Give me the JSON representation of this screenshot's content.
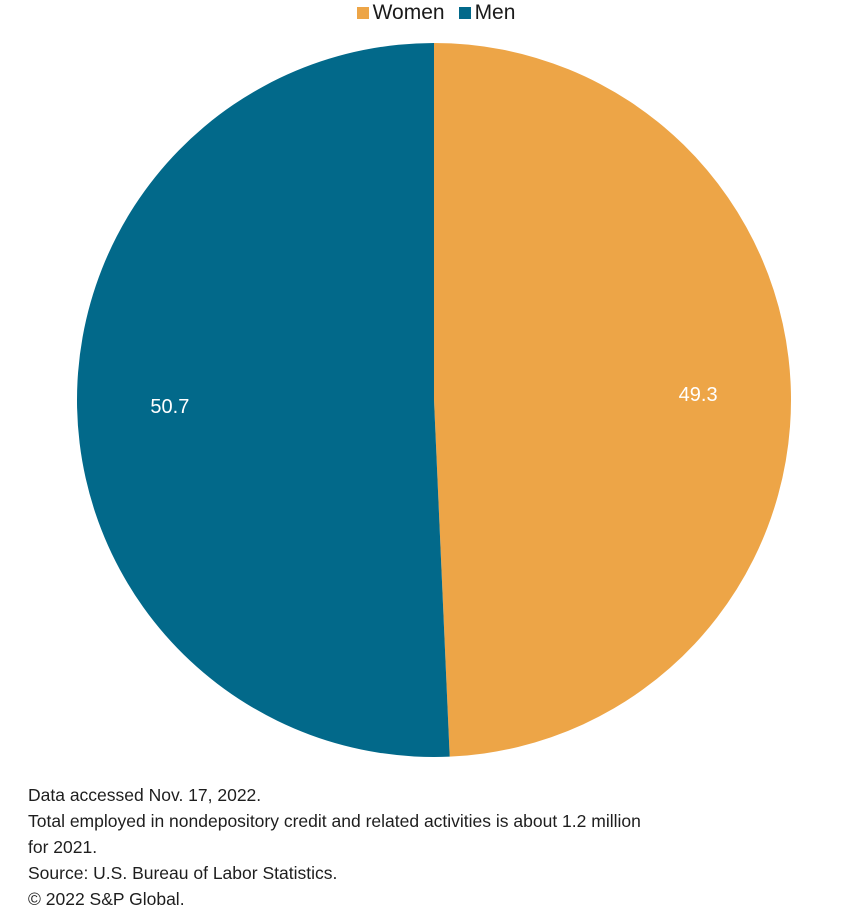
{
  "chart_data": {
    "type": "pie",
    "title": "",
    "legend": {
      "position": "top",
      "entries": [
        "Women",
        "Men"
      ]
    },
    "slices": [
      {
        "label": "Women",
        "value": 49.3,
        "color": "#EDA547"
      },
      {
        "label": "Men",
        "value": 50.7,
        "color": "#02698A"
      }
    ],
    "start_angle_deg": 0,
    "direction": "clockwise",
    "data_labels": [
      "49.3",
      "50.7"
    ]
  },
  "legend": {
    "items": [
      {
        "label": "Women",
        "color": "#EDA547"
      },
      {
        "label": "Men",
        "color": "#02698A"
      }
    ]
  },
  "notes": {
    "line1": "Data accessed Nov. 17, 2022.",
    "line2": "Total employed in nondepository credit and related activities is about 1.2 million",
    "line3": "for 2021.",
    "line4": "Source: U.S. Bureau of Labor Statistics.",
    "line5": "© 2022 S&P Global."
  }
}
